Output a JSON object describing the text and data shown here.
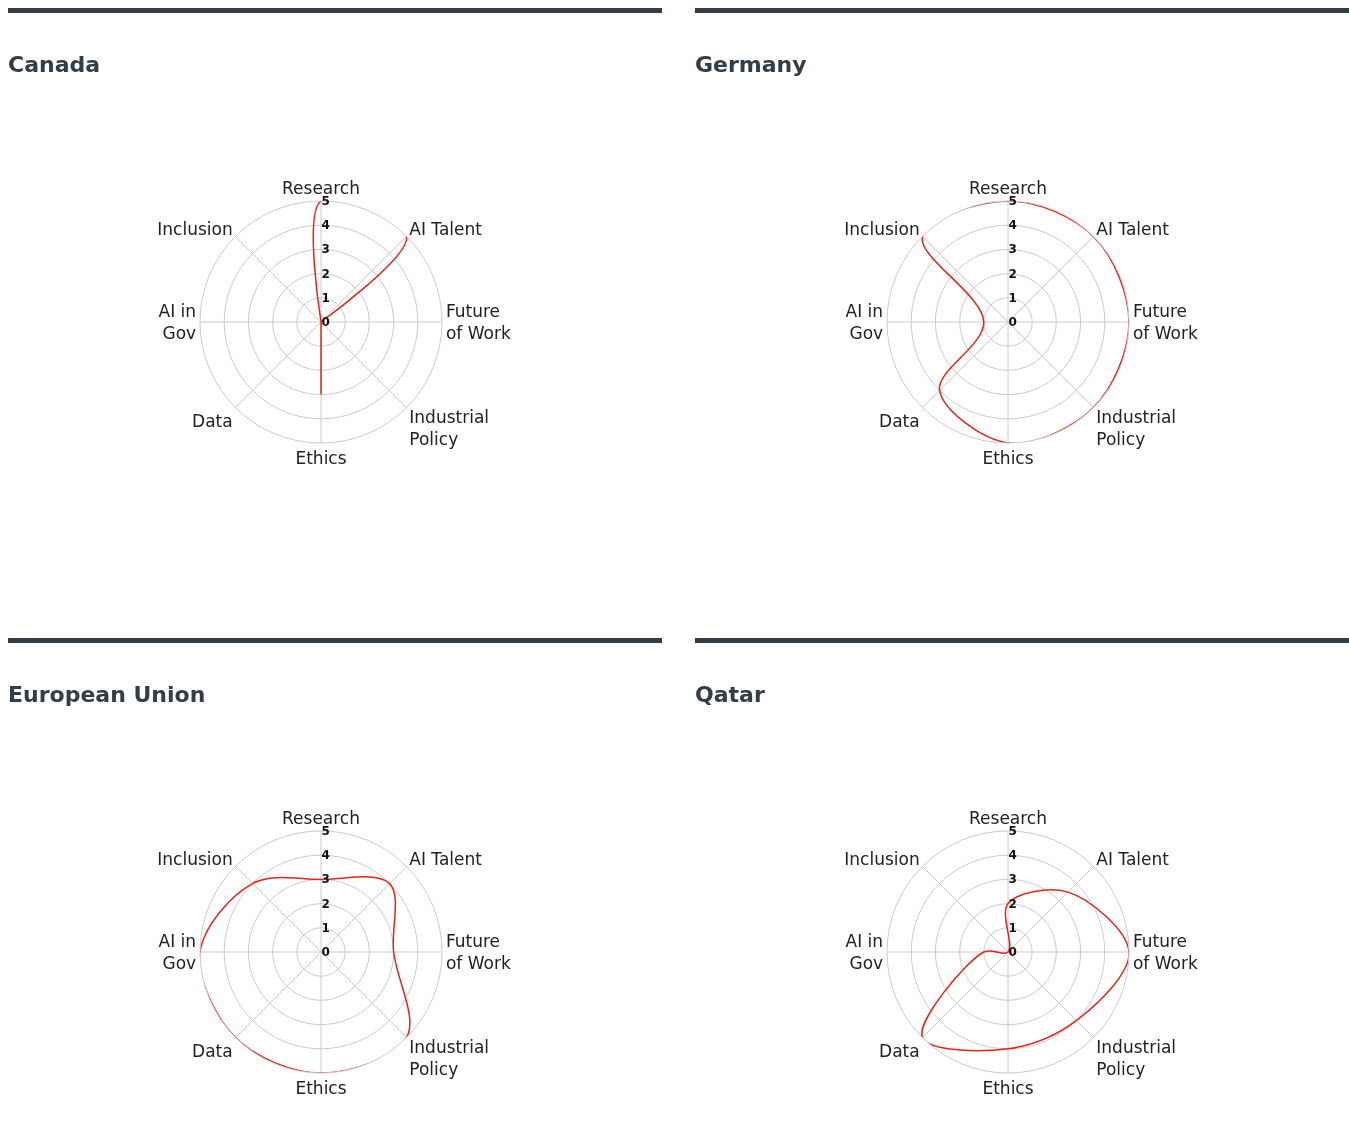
{
  "chart_data": [
    {
      "type": "radar",
      "title": "Canada",
      "categories": [
        "Research",
        "AI Talent",
        "Future\nof Work",
        "Industrial\nPolicy",
        "Ethics",
        "Data",
        "AI in\nGov",
        "Inclusion"
      ],
      "series": [
        {
          "color": "#e0261c",
          "values": [
            5,
            5,
            0,
            0,
            3,
            0,
            0,
            0
          ]
        }
      ],
      "ylim": [
        0,
        5
      ],
      "yticks": [
        0,
        1,
        2,
        3,
        4,
        5
      ],
      "grid": true,
      "marker": "none"
    },
    {
      "type": "radar",
      "title": "Germany",
      "categories": [
        "Research",
        "AI Talent",
        "Future\nof Work",
        "Industrial\nPolicy",
        "Ethics",
        "Data",
        "AI in\nGov",
        "Inclusion"
      ],
      "series": [
        {
          "color": "#e0261c",
          "values": [
            5,
            5,
            5,
            5,
            5,
            4,
            1,
            5
          ]
        }
      ],
      "ylim": [
        0,
        5
      ],
      "yticks": [
        0,
        1,
        2,
        3,
        4,
        5
      ],
      "grid": true,
      "marker": "none"
    },
    {
      "type": "radar",
      "title": "European Union",
      "categories": [
        "Research",
        "AI Talent",
        "Future\nof Work",
        "Industrial\nPolicy",
        "Ethics",
        "Data",
        "AI in\nGov",
        "Inclusion"
      ],
      "series": [
        {
          "color": "#e0261c",
          "values": [
            3,
            4,
            3,
            5,
            5,
            5,
            5,
            4
          ]
        }
      ],
      "ylim": [
        0,
        5
      ],
      "yticks": [
        0,
        1,
        2,
        3,
        4,
        5
      ],
      "grid": true,
      "marker": "none"
    },
    {
      "type": "radar",
      "title": "Qatar",
      "categories": [
        "Research",
        "AI Talent",
        "Future\nof Work",
        "Industrial\nPolicy",
        "Ethics",
        "Data",
        "AI in\nGov",
        "Inclusion"
      ],
      "series": [
        {
          "color": "#e0261c",
          "values": [
            2,
            3.5,
            5,
            4,
            4,
            5,
            1,
            0
          ]
        }
      ],
      "ylim": [
        0,
        5
      ],
      "yticks": [
        0,
        1,
        2,
        3,
        4,
        5
      ],
      "grid": true,
      "marker": "none"
    }
  ]
}
